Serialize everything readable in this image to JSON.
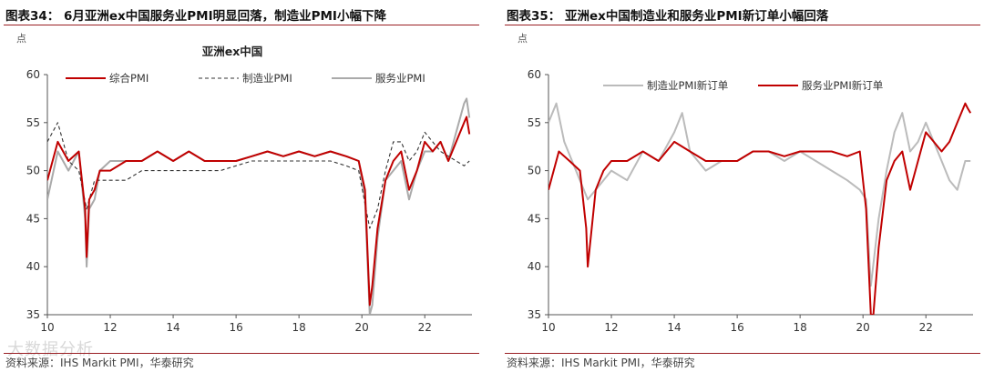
{
  "figures": [
    {
      "title": "图表34： 6月亚洲ex中国服务业PMI明显回落，制造业PMI小幅下降",
      "source": "资料来源：IHS Markit PMI，华泰研究"
    },
    {
      "title": "图表35： 亚洲ex中国制造业和服务业PMI新订单小幅回落",
      "source": "资料来源：IHS Markit PMI，华泰研究"
    }
  ],
  "watermark": "大数据分析",
  "chart_data": [
    {
      "type": "line",
      "title": "亚洲ex中国",
      "ylabel": "点",
      "ylim": [
        35,
        60
      ],
      "yticks": [
        35,
        40,
        45,
        50,
        55,
        60
      ],
      "xlim": [
        2010,
        2023.5
      ],
      "xticks": [
        10,
        12,
        14,
        16,
        18,
        20,
        22
      ],
      "legend": "top",
      "series": [
        {
          "name": "综合PMI",
          "color": "#c00000",
          "style": "solid",
          "x": [
            2010.0,
            2010.33,
            2010.67,
            2011.0,
            2011.2,
            2011.25,
            2011.33,
            2011.5,
            2011.67,
            2012.0,
            2012.5,
            2013.0,
            2013.5,
            2014.0,
            2014.5,
            2015.0,
            2015.5,
            2016.0,
            2016.5,
            2017.0,
            2017.5,
            2018.0,
            2018.5,
            2019.0,
            2019.5,
            2019.9,
            2020.1,
            2020.25,
            2020.33,
            2020.5,
            2020.75,
            2021.0,
            2021.25,
            2021.5,
            2021.75,
            2022.0,
            2022.25,
            2022.5,
            2022.75,
            2023.0,
            2023.25,
            2023.33,
            2023.42
          ],
          "values": [
            49,
            53,
            51,
            52,
            46,
            41,
            47,
            48,
            50,
            50,
            51,
            51,
            52,
            51,
            52,
            51,
            51,
            51,
            51.5,
            52,
            51.5,
            52,
            51.5,
            52,
            51.5,
            51,
            48,
            36,
            38,
            44,
            49,
            51,
            52,
            48,
            50,
            53,
            52,
            53,
            51,
            53,
            55,
            55.6,
            53.8
          ]
        },
        {
          "name": "制造业PMI",
          "color": "#333333",
          "style": "dashed",
          "x": [
            2010.0,
            2010.33,
            2010.67,
            2011.0,
            2011.25,
            2011.5,
            2012.0,
            2012.5,
            2013.0,
            2013.5,
            2014.0,
            2014.5,
            2015.0,
            2015.5,
            2016.0,
            2016.5,
            2017.0,
            2017.5,
            2018.0,
            2018.5,
            2019.0,
            2019.5,
            2019.9,
            2020.25,
            2020.5,
            2020.75,
            2021.0,
            2021.25,
            2021.5,
            2021.75,
            2022.0,
            2022.5,
            2023.0,
            2023.25,
            2023.42
          ],
          "values": [
            53,
            55,
            51,
            50,
            46,
            49,
            49,
            49,
            50,
            50,
            50,
            50,
            50,
            50,
            50.5,
            51,
            51,
            51,
            51,
            51,
            51,
            50.5,
            50,
            44,
            46,
            50,
            53,
            53,
            51,
            52,
            54,
            52,
            51,
            50.5,
            51
          ]
        },
        {
          "name": "服务业PMI",
          "color": "#aaaaaa",
          "style": "solid",
          "x": [
            2010.0,
            2010.33,
            2010.67,
            2011.0,
            2011.2,
            2011.25,
            2011.33,
            2011.5,
            2011.67,
            2012.0,
            2012.5,
            2013.0,
            2013.5,
            2014.0,
            2014.5,
            2015.0,
            2015.5,
            2016.0,
            2016.5,
            2017.0,
            2017.5,
            2018.0,
            2018.5,
            2019.0,
            2019.5,
            2019.9,
            2020.1,
            2020.25,
            2020.33,
            2020.5,
            2020.75,
            2021.0,
            2021.25,
            2021.5,
            2021.75,
            2022.0,
            2022.25,
            2022.5,
            2022.75,
            2023.0,
            2023.25,
            2023.33,
            2023.42
          ],
          "values": [
            47,
            52,
            50,
            52,
            45,
            40,
            46,
            47,
            50,
            51,
            51,
            51,
            52,
            51,
            52,
            51,
            51,
            51,
            51.5,
            52,
            51.5,
            52,
            51.5,
            52,
            51.5,
            51,
            47,
            35,
            36,
            43,
            49,
            50,
            51,
            47,
            50,
            52,
            52,
            53,
            51,
            54,
            57,
            57.5,
            55.5
          ]
        }
      ]
    },
    {
      "type": "line",
      "ylabel": "点",
      "ylim": [
        35,
        60
      ],
      "yticks": [
        35,
        40,
        45,
        50,
        55,
        60
      ],
      "xlim": [
        2010,
        2023.5
      ],
      "xticks": [
        10,
        12,
        14,
        16,
        18,
        20,
        22
      ],
      "legend": "top",
      "series": [
        {
          "name": "制造业PMI新订单",
          "color": "#bbbbbb",
          "style": "solid",
          "x": [
            2010.0,
            2010.25,
            2010.5,
            2010.75,
            2011.0,
            2011.25,
            2011.5,
            2011.75,
            2012.0,
            2012.5,
            2013.0,
            2013.5,
            2014.0,
            2014.25,
            2014.5,
            2015.0,
            2015.5,
            2016.0,
            2016.5,
            2017.0,
            2017.5,
            2018.0,
            2018.5,
            2019.0,
            2019.5,
            2019.9,
            2020.1,
            2020.25,
            2020.5,
            2020.75,
            2021.0,
            2021.25,
            2021.5,
            2021.75,
            2022.0,
            2022.5,
            2022.75,
            2023.0,
            2023.25,
            2023.42
          ],
          "values": [
            55,
            57,
            53,
            51,
            49,
            47,
            48,
            49,
            50,
            49,
            52,
            51,
            54,
            56,
            52,
            50,
            51,
            51,
            52,
            52,
            51,
            52,
            51,
            50,
            49,
            48,
            47,
            38,
            45,
            50,
            54,
            56,
            52,
            53,
            55,
            51,
            49,
            48,
            51,
            51
          ]
        },
        {
          "name": "服务业PMI新订单",
          "color": "#c00000",
          "style": "solid",
          "x": [
            2010.0,
            2010.33,
            2010.67,
            2011.0,
            2011.2,
            2011.25,
            2011.5,
            2011.75,
            2012.0,
            2012.5,
            2013.0,
            2013.5,
            2014.0,
            2014.5,
            2015.0,
            2015.5,
            2016.0,
            2016.5,
            2017.0,
            2017.5,
            2018.0,
            2018.5,
            2019.0,
            2019.5,
            2019.9,
            2020.1,
            2020.25,
            2020.33,
            2020.5,
            2020.75,
            2021.0,
            2021.25,
            2021.5,
            2021.75,
            2022.0,
            2022.25,
            2022.5,
            2022.75,
            2023.0,
            2023.25,
            2023.33,
            2023.42
          ],
          "values": [
            48,
            52,
            51,
            50,
            44,
            40,
            48,
            50,
            51,
            51,
            52,
            51,
            53,
            52,
            51,
            51,
            51,
            52,
            52,
            51.5,
            52,
            52,
            52,
            51.5,
            52,
            46,
            35,
            35,
            42,
            49,
            51,
            52,
            48,
            51,
            54,
            53,
            52,
            53,
            55,
            57,
            56.5,
            56
          ]
        }
      ]
    }
  ]
}
